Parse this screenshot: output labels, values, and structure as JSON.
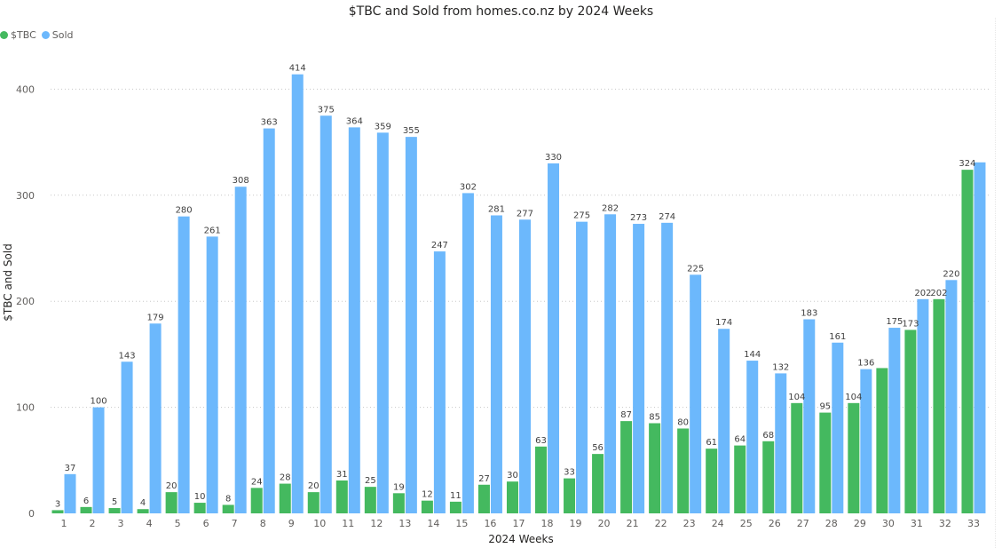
{
  "chart_data": {
    "type": "bar",
    "title": "$TBC and Sold from homes.co.nz by 2024 Weeks",
    "xlabel": "2024 Weeks",
    "ylabel": "$TBC and Sold",
    "ylim": [
      0,
      430
    ],
    "yticks": [
      0,
      100,
      200,
      300,
      400
    ],
    "grid": true,
    "legend_position": "top-left",
    "categories": [
      "1",
      "2",
      "3",
      "4",
      "5",
      "6",
      "7",
      "8",
      "9",
      "10",
      "11",
      "12",
      "13",
      "14",
      "15",
      "16",
      "17",
      "18",
      "19",
      "20",
      "21",
      "22",
      "23",
      "24",
      "25",
      "26",
      "27",
      "28",
      "29",
      "30",
      "31",
      "32",
      "33"
    ],
    "series": [
      {
        "name": "$TBC",
        "color": "#44b95f",
        "values": [
          3,
          6,
          5,
          4,
          20,
          10,
          8,
          24,
          28,
          20,
          31,
          25,
          19,
          12,
          11,
          27,
          30,
          63,
          33,
          56,
          87,
          85,
          80,
          61,
          64,
          68,
          104,
          95,
          104,
          137,
          173,
          202,
          324
        ]
      },
      {
        "name": "Sold",
        "color": "#6cb8fc",
        "values": [
          37,
          100,
          143,
          179,
          280,
          261,
          308,
          363,
          414,
          375,
          364,
          359,
          355,
          247,
          302,
          281,
          277,
          330,
          275,
          282,
          273,
          274,
          225,
          174,
          144,
          132,
          183,
          161,
          136,
          175,
          202,
          220,
          331
        ]
      }
    ],
    "data_labels": {
      "$TBC": [
        "3",
        "6",
        "5",
        "4",
        "20",
        "10",
        "8",
        "24",
        "28",
        "20",
        "31",
        "25",
        "19",
        "12",
        "11",
        "27",
        "30",
        "63",
        "33",
        "56",
        "87",
        "85",
        "80",
        "61",
        "64",
        "68",
        "104",
        "95",
        "104",
        "",
        "173",
        "202",
        "324"
      ],
      "Sold": [
        "37",
        "100",
        "143",
        "179",
        "280",
        "261",
        "308",
        "363",
        "414",
        "375",
        "364",
        "359",
        "355",
        "247",
        "302",
        "281",
        "277",
        "330",
        "275",
        "282",
        "273",
        "274",
        "225",
        "174",
        "144",
        "132",
        "183",
        "161",
        "136",
        "175",
        "202",
        "220",
        ""
      ]
    }
  }
}
